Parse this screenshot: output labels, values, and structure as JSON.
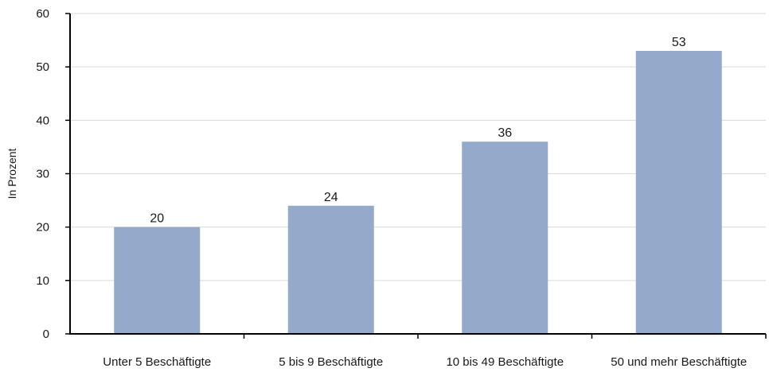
{
  "chart_data": {
    "type": "bar",
    "title": "",
    "xlabel": "",
    "ylabel": "In Prozent",
    "categories": [
      "Unter 5 Beschäftigte",
      "5 bis 9 Beschäftigte",
      "10 bis 49 Beschäftigte",
      "50 und mehr Beschäftigte"
    ],
    "values": [
      20,
      24,
      36,
      53
    ],
    "data_labels": [
      "20",
      "24",
      "36",
      "53"
    ],
    "ylim": [
      0,
      60
    ],
    "yticks": [
      0,
      10,
      20,
      30,
      40,
      50,
      60
    ],
    "ytick_labels": [
      "0",
      "10",
      "20",
      "30",
      "40",
      "50",
      "60"
    ],
    "grid": true,
    "legend": "none",
    "colors": {
      "bar": "#95aacb",
      "grid": "#d9d9d9",
      "axis": "#000000",
      "text": "#1a1a1a"
    }
  }
}
